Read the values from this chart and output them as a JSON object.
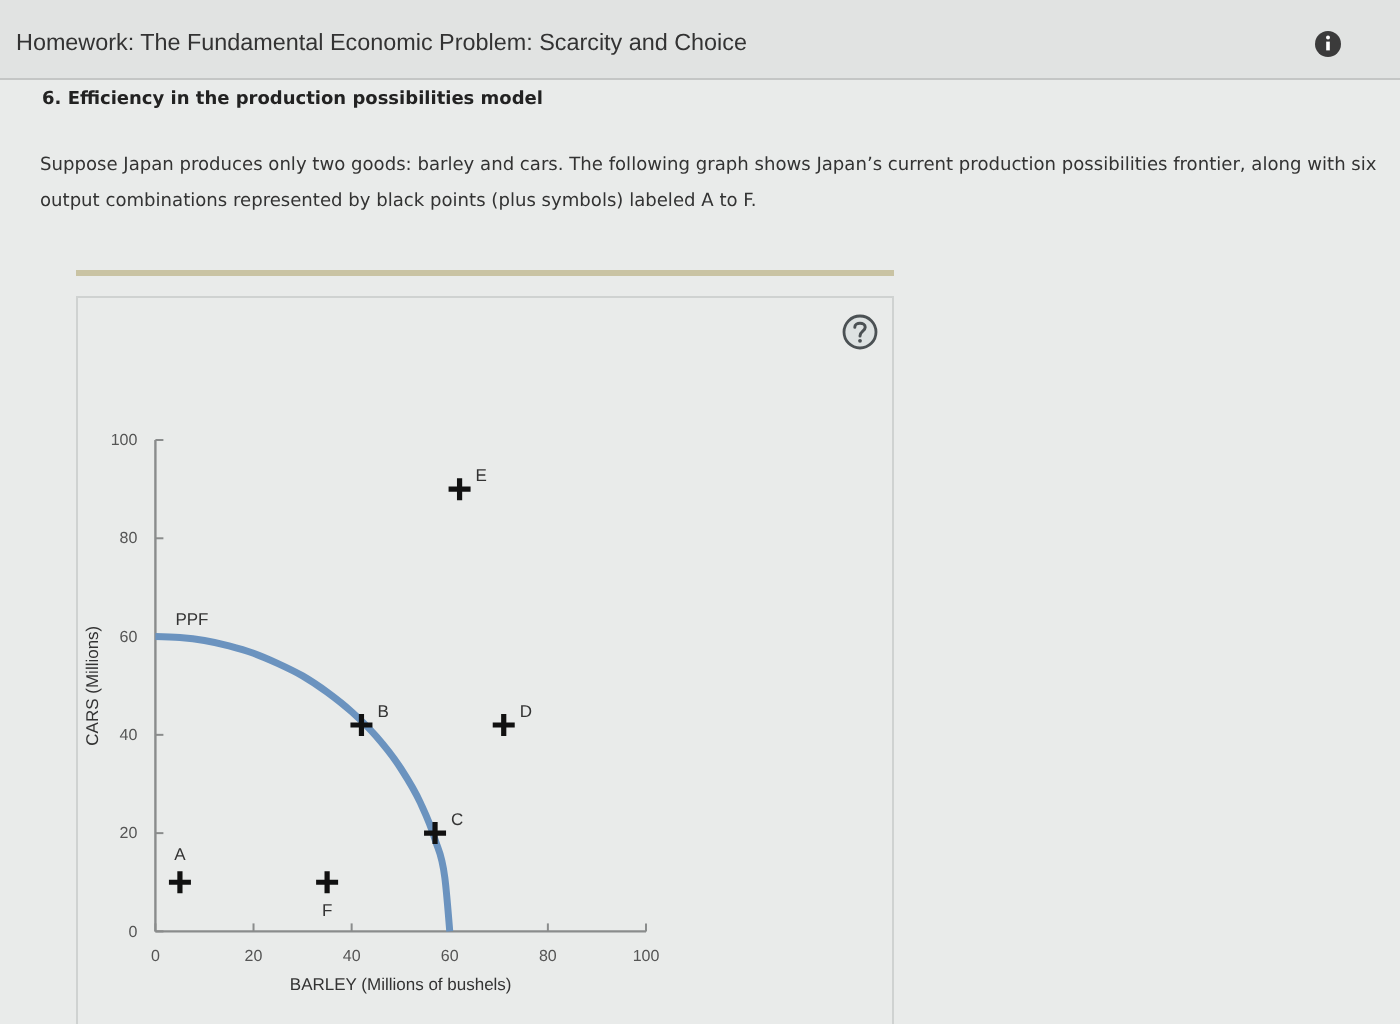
{
  "chart_data": {
    "type": "scatter",
    "title": "Homework: The Fundamental Economic Problem: Scarcity and Choice",
    "subtitle": "6. Efficiency in the production possibilities model",
    "xlabel": "BARLEY (Millions of bushels)",
    "ylabel": "CARS (Millions)",
    "xlim": [
      0,
      100
    ],
    "ylim": [
      0,
      100
    ],
    "xticks": [
      0,
      20,
      40,
      60,
      80,
      100
    ],
    "yticks": [
      0,
      20,
      40,
      60,
      80,
      100
    ],
    "annotations": [
      "Suppose Japan produces only two goods: barley and cars. The following graph shows Japan’s current production possibilities frontier, along with six output combinations represented by black points (plus symbols) labeled A to F.",
      {
        "text": "A",
        "x": 5,
        "y": 10
      },
      {
        "text": "B",
        "x": 42,
        "y": 42
      },
      {
        "text": "C",
        "x": 57,
        "y": 20
      },
      {
        "text": "D",
        "x": 71,
        "y": 42
      },
      {
        "text": "E",
        "x": 62,
        "y": 90
      },
      {
        "text": "F",
        "x": 35,
        "y": 10
      }
    ],
    "series": [
      {
        "name": "PPF",
        "type": "line",
        "color": "#6b93bf",
        "x": [
          0,
          5,
          10,
          15,
          20,
          25,
          30,
          35,
          40,
          45,
          50,
          54,
          57,
          59,
          60
        ],
        "values": [
          60,
          59.8,
          59.2,
          58.1,
          56.6,
          54.5,
          52,
          48.7,
          44.7,
          39.7,
          33.2,
          26.2,
          18.7,
          10.9,
          0
        ]
      },
      {
        "color": "#111111",
        "marker": "cross",
        "x": [
          5,
          42,
          57,
          71,
          62,
          35
        ],
        "values": [
          10,
          42,
          20,
          42,
          90,
          10
        ]
      }
    ]
  }
}
